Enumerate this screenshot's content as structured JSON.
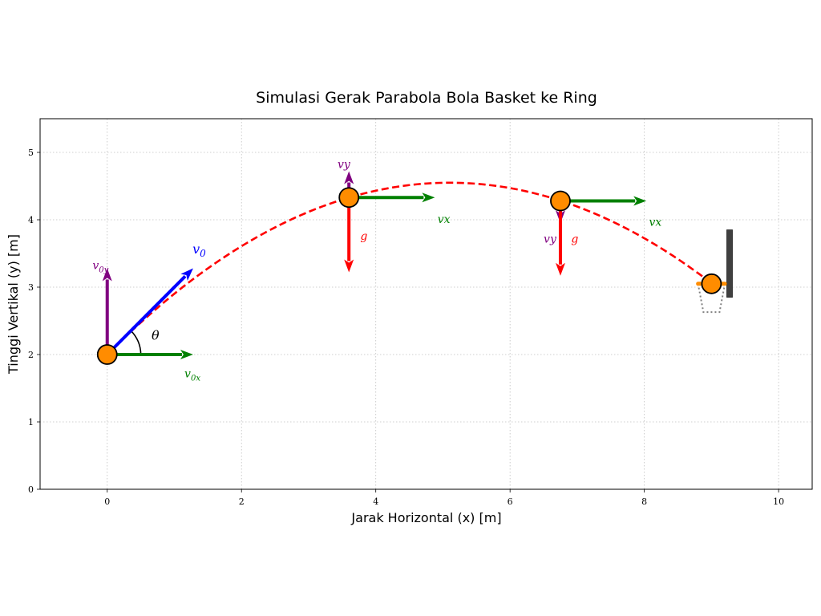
{
  "chart_data": {
    "type": "line",
    "title": "Simulasi Gerak Parabola Bola Basket ke Ring",
    "xlabel": "Jarak Horizontal (x) [m]",
    "ylabel": "Tinggi Vertikal (y) [m]",
    "xlim": [
      -1,
      10.5
    ],
    "ylim": [
      0,
      5.5
    ],
    "xticks": [
      0,
      2,
      4,
      6,
      8,
      10
    ],
    "yticks": [
      0,
      1,
      2,
      3,
      4,
      5
    ],
    "grid": true,
    "colors": {
      "trajectory": "#ff0000",
      "ball_fill": "#ff8c00",
      "v0": "#0000ff",
      "vx": "#008000",
      "vy": "#800080",
      "g": "#ff0000",
      "backboard": "#404040",
      "net": "#808080"
    },
    "trajectory": {
      "start": [
        0,
        2
      ],
      "apex": [
        5.1,
        4.55
      ],
      "end": [
        9.0,
        3.05
      ],
      "style": "dashed"
    },
    "balls": [
      {
        "x": 0,
        "y": 2.0
      },
      {
        "x": 3.6,
        "y": 4.33
      },
      {
        "x": 6.75,
        "y": 4.28
      },
      {
        "x": 9.0,
        "y": 3.05
      }
    ],
    "hoop": {
      "rim_y": 3.05,
      "rim_x": [
        8.8,
        9.2
      ],
      "backboard_x": 9.27,
      "backboard_y": [
        2.85,
        3.85
      ],
      "net_bottom_y": 2.63
    },
    "vectors": [
      {
        "name": "v0",
        "from": [
          0,
          2.0
        ],
        "to": [
          1.28,
          3.28
        ],
        "color": "v0"
      },
      {
        "name": "v0x",
        "from": [
          0,
          2.0
        ],
        "to": [
          1.28,
          2.0
        ],
        "color": "vx"
      },
      {
        "name": "v0y",
        "from": [
          0,
          2.0
        ],
        "to": [
          0,
          3.28
        ],
        "color": "vy"
      },
      {
        "name": "vx-1",
        "from": [
          3.6,
          4.33
        ],
        "to": [
          4.88,
          4.33
        ],
        "color": "vx"
      },
      {
        "name": "vy-1",
        "from": [
          3.6,
          4.33
        ],
        "to": [
          3.6,
          4.72
        ],
        "color": "vy"
      },
      {
        "name": "g-1",
        "from": [
          3.6,
          4.33
        ],
        "to": [
          3.6,
          3.22
        ],
        "color": "g"
      },
      {
        "name": "vx-2",
        "from": [
          6.75,
          4.28
        ],
        "to": [
          8.03,
          4.28
        ],
        "color": "vx"
      },
      {
        "name": "vy-2",
        "from": [
          6.75,
          4.28
        ],
        "to": [
          6.75,
          3.95
        ],
        "color": "vy"
      },
      {
        "name": "g-2",
        "from": [
          6.75,
          4.28
        ],
        "to": [
          6.75,
          3.17
        ],
        "color": "g"
      }
    ],
    "annotations": {
      "v0": {
        "main": "v",
        "sub": "0",
        "x": 1.27,
        "y": 3.5,
        "color": "v0"
      },
      "v0x": {
        "main": "v",
        "sub": "0x",
        "x": 1.15,
        "y": 1.66,
        "color": "vx"
      },
      "v0y": {
        "main": "v",
        "sub": "0y",
        "x": -0.22,
        "y": 3.27,
        "color": "vy"
      },
      "theta": {
        "text": "θ",
        "x": 0.66,
        "y": 2.22,
        "color": "#000000"
      },
      "vy1": {
        "text": "vy",
        "x": 3.43,
        "y": 4.77,
        "color": "vy"
      },
      "vx1": {
        "text": "vx",
        "x": 4.92,
        "y": 3.95,
        "color": "vx"
      },
      "g1": {
        "text": "g",
        "x": 3.77,
        "y": 3.7,
        "color": "g"
      },
      "vy2": {
        "text": "vy",
        "x": 6.5,
        "y": 3.66,
        "color": "vy"
      },
      "g2": {
        "text": "g",
        "x": 6.91,
        "y": 3.66,
        "color": "g"
      },
      "vx2": {
        "text": "vx",
        "x": 8.07,
        "y": 3.91,
        "color": "vx"
      }
    }
  }
}
